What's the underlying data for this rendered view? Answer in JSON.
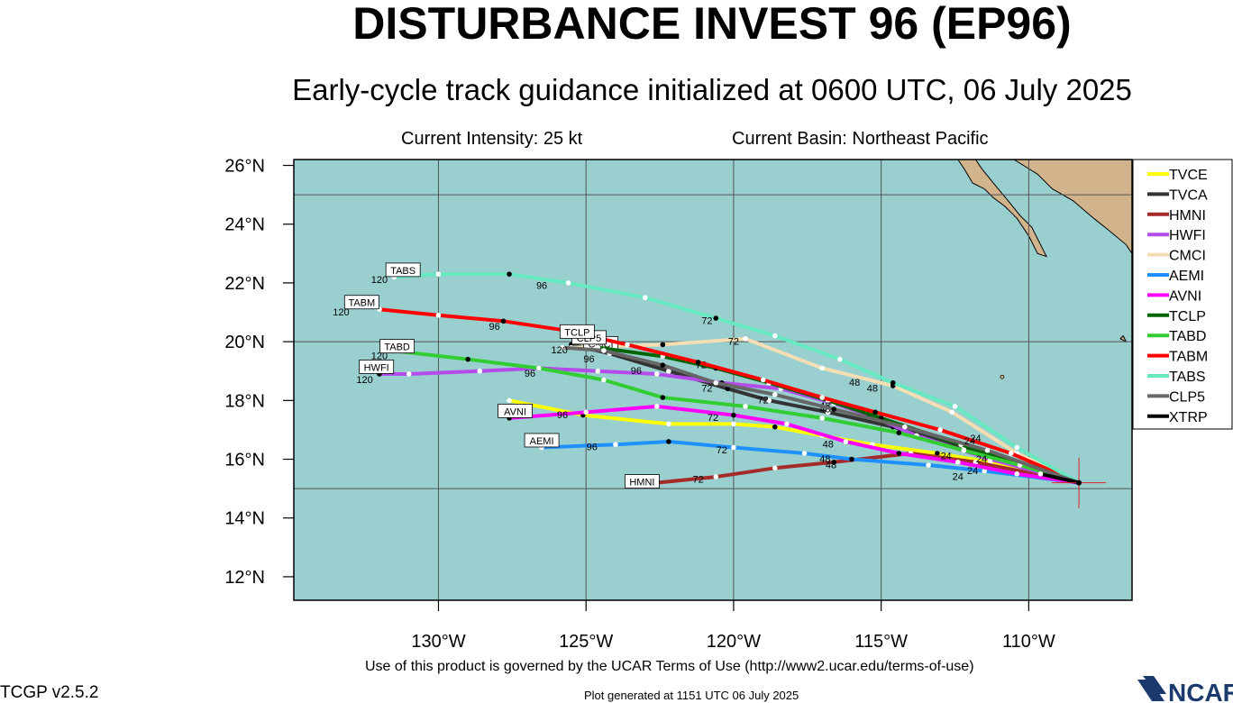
{
  "title": "DISTURBANCE INVEST 96 (EP96)",
  "subtitle": "Early-cycle track guidance initialized at 0600 UTC, 06 July 2025",
  "current_intensity": "Current Intensity: 25 kt",
  "current_basin": "Current Basin: Northeast Pacific",
  "footer": {
    "terms": "Use of this product is governed by the UCAR Terms of Use (http://www2.ucar.edu/terms-of-use)",
    "version": "TCGP v2.5.2",
    "generated": "Plot generated at 1151 UTC   06 July 2025",
    "logo_text": "NCAR"
  },
  "colors": {
    "ocean": "#99CFCF",
    "land": "#D2B48C",
    "grid": "#555555"
  },
  "chart_data": {
    "type": "map",
    "x_axis": {
      "ticks": [
        -130,
        -125,
        -120,
        -115,
        -110
      ],
      "labels": [
        "130°W",
        "125°W",
        "120°W",
        "115°W",
        "110°W"
      ],
      "range": [
        -134.9,
        -106.5
      ]
    },
    "y_axis": {
      "ticks": [
        12,
        14,
        16,
        18,
        20,
        22,
        24,
        26
      ],
      "labels": [
        "12°N",
        "14°N",
        "16°N",
        "18°N",
        "20°N",
        "22°N",
        "24°N",
        "26°N"
      ],
      "range": [
        11.2,
        26.2
      ]
    },
    "origin": {
      "lon": -108.3,
      "lat": 15.2
    },
    "legend_position": "right",
    "series": [
      {
        "name": "TVCE",
        "color": "#FFFF00",
        "points": [
          [
            -108.3,
            15.2
          ],
          [
            -109.6,
            15.6
          ],
          [
            -111.3,
            15.9
          ],
          [
            -113.1,
            16.2
          ],
          [
            -115.3,
            16.5
          ],
          [
            -117.0,
            16.8
          ],
          [
            -118.6,
            17.1
          ],
          [
            -120.0,
            17.2
          ],
          [
            -122.2,
            17.2
          ],
          [
            -125.1,
            17.5
          ],
          [
            -127.6,
            18.0
          ]
        ],
        "labels": [],
        "end_label": ""
      },
      {
        "name": "TVCA",
        "color": "#333333",
        "points": [
          [
            -108.3,
            15.2
          ],
          [
            -110.2,
            15.8
          ],
          [
            -112.2,
            16.4
          ],
          [
            -114.6,
            17.1
          ],
          [
            -116.8,
            17.6
          ],
          [
            -118.8,
            18.0
          ],
          [
            -120.2,
            18.4
          ],
          [
            -122.2,
            19.0
          ],
          [
            -124.2,
            19.6
          ],
          [
            -125.5,
            19.9
          ]
        ],
        "labels": [
          {
            "text": "72",
            "lon": -119.0,
            "lat": 17.9
          }
        ],
        "end_label": ""
      },
      {
        "name": "HMNI",
        "color": "#A52A2A",
        "points": [
          [
            -108.3,
            15.2
          ],
          [
            -111.8,
            15.9
          ],
          [
            -114.0,
            16.2
          ],
          [
            -116.6,
            15.9
          ],
          [
            -118.6,
            15.7
          ],
          [
            -120.6,
            15.4
          ],
          [
            -122.6,
            15.2
          ]
        ],
        "labels": [
          {
            "text": "48",
            "lon": -116.7,
            "lat": 15.7
          },
          {
            "text": "72",
            "lon": -121.2,
            "lat": 15.2
          }
        ],
        "end_label": "HMNI",
        "end_label_pos": [
          -123.1,
          15.2
        ]
      },
      {
        "name": "HWFI",
        "color": "#B44BEA",
        "points": [
          [
            -108.3,
            15.2
          ],
          [
            -111.3,
            16.0
          ],
          [
            -113.8,
            16.8
          ],
          [
            -115.4,
            17.5
          ],
          [
            -116.6,
            17.9
          ],
          [
            -118.4,
            18.4
          ],
          [
            -120.4,
            18.6
          ],
          [
            -122.6,
            18.9
          ],
          [
            -124.6,
            19.0
          ],
          [
            -126.6,
            19.1
          ],
          [
            -128.6,
            19.0
          ],
          [
            -131.0,
            18.9
          ],
          [
            -132.0,
            18.9
          ]
        ],
        "labels": [
          {
            "text": "48",
            "lon": -116.9,
            "lat": 17.6
          },
          {
            "text": "72",
            "lon": -120.9,
            "lat": 18.3
          },
          {
            "text": "96",
            "lon": -126.9,
            "lat": 18.8
          },
          {
            "text": "120",
            "lon": -132.5,
            "lat": 18.6
          }
        ],
        "end_label": "HWFI",
        "end_label_pos": [
          -132.1,
          19.1
        ]
      },
      {
        "name": "CMCI",
        "color": "#F5DEB3",
        "points": [
          [
            -108.3,
            15.2
          ],
          [
            -110.4,
            16.2
          ],
          [
            -112.6,
            17.6
          ],
          [
            -114.6,
            18.5
          ],
          [
            -117.0,
            19.1
          ],
          [
            -119.6,
            20.1
          ],
          [
            -122.4,
            19.9
          ],
          [
            -125.5,
            19.8
          ]
        ],
        "labels": [
          {
            "text": "48",
            "lon": -115.3,
            "lat": 18.3
          },
          {
            "text": "72",
            "lon": -120.0,
            "lat": 19.9
          }
        ],
        "end_label": "CMCI",
        "end_label_pos": [
          -124.5,
          19.9
        ]
      },
      {
        "name": "AEMI",
        "color": "#1E90FF",
        "points": [
          [
            -108.3,
            15.2
          ],
          [
            -111.5,
            15.6
          ],
          [
            -113.4,
            15.8
          ],
          [
            -116.0,
            16.0
          ],
          [
            -117.6,
            16.2
          ],
          [
            -120.0,
            16.4
          ],
          [
            -122.2,
            16.6
          ],
          [
            -124.0,
            16.5
          ],
          [
            -126.5,
            16.4
          ]
        ],
        "labels": [
          {
            "text": "48",
            "lon": -116.9,
            "lat": 15.9
          },
          {
            "text": "72",
            "lon": -120.4,
            "lat": 16.2
          },
          {
            "text": "96",
            "lon": -124.8,
            "lat": 16.3
          }
        ],
        "end_label": "AEMI",
        "end_label_pos": [
          -126.5,
          16.6
        ]
      },
      {
        "name": "AVNI",
        "color": "#FF00FF",
        "points": [
          [
            -108.3,
            15.2
          ],
          [
            -110.4,
            15.5
          ],
          [
            -112.4,
            15.9
          ],
          [
            -114.4,
            16.2
          ],
          [
            -116.2,
            16.6
          ],
          [
            -118.2,
            17.2
          ],
          [
            -120.0,
            17.5
          ],
          [
            -122.6,
            17.8
          ],
          [
            -125.0,
            17.6
          ],
          [
            -127.6,
            17.4
          ]
        ],
        "labels": [
          {
            "text": "48",
            "lon": -116.8,
            "lat": 16.4
          },
          {
            "text": "72",
            "lon": -120.7,
            "lat": 17.3
          },
          {
            "text": "96",
            "lon": -125.8,
            "lat": 17.4
          }
        ],
        "end_label": "AVNI",
        "end_label_pos": [
          -127.4,
          17.6
        ]
      },
      {
        "name": "TCLP",
        "color": "#006400",
        "points": [
          [
            -108.3,
            15.2
          ],
          [
            -110.4,
            15.9
          ],
          [
            -112.3,
            16.5
          ],
          [
            -115.0,
            17.4
          ],
          [
            -116.8,
            18.0
          ],
          [
            -118.8,
            18.6
          ],
          [
            -120.6,
            19.1
          ],
          [
            -122.4,
            19.5
          ],
          [
            -124.6,
            19.8
          ]
        ],
        "labels": [
          {
            "text": "72",
            "lon": -121.1,
            "lat": 19.1
          },
          {
            "text": "96",
            "lon": -123.3,
            "lat": 18.9
          }
        ],
        "end_label": "",
        "end_label_pos": [
          -125.5,
          20.1
        ]
      },
      {
        "name": "TABD",
        "color": "#32CD32",
        "points": [
          [
            -108.3,
            15.2
          ],
          [
            -110.3,
            15.8
          ],
          [
            -112.2,
            16.3
          ],
          [
            -114.4,
            16.9
          ],
          [
            -117.0,
            17.4
          ],
          [
            -119.6,
            17.8
          ],
          [
            -122.4,
            18.1
          ],
          [
            -124.4,
            18.7
          ],
          [
            -126.6,
            19.1
          ],
          [
            -129.0,
            19.4
          ],
          [
            -131.6,
            19.7
          ]
        ],
        "labels": [
          {
            "text": "120",
            "lon": -132.0,
            "lat": 19.4
          }
        ],
        "end_label": "TABD",
        "end_label_pos": [
          -131.4,
          19.8
        ]
      },
      {
        "name": "TABM",
        "color": "#FF0000",
        "points": [
          [
            -108.3,
            15.2
          ],
          [
            -110.6,
            16.2
          ],
          [
            -113.0,
            17.0
          ],
          [
            -115.2,
            17.6
          ],
          [
            -117.0,
            18.1
          ],
          [
            -119.0,
            18.7
          ],
          [
            -121.2,
            19.3
          ],
          [
            -123.6,
            19.9
          ],
          [
            -125.8,
            20.4
          ],
          [
            -127.8,
            20.7
          ],
          [
            -130.0,
            20.9
          ],
          [
            -132.0,
            21.1
          ]
        ],
        "labels": [
          {
            "text": "48",
            "lon": -116.9,
            "lat": 17.7
          },
          {
            "text": "96",
            "lon": -128.1,
            "lat": 20.4
          },
          {
            "text": "120",
            "lon": -133.3,
            "lat": 20.9
          }
        ],
        "end_label": "TABM",
        "end_label_pos": [
          -132.6,
          21.3
        ]
      },
      {
        "name": "TABS",
        "color": "#66E8C0",
        "points": [
          [
            -108.3,
            15.2
          ],
          [
            -110.4,
            16.4
          ],
          [
            -112.5,
            17.8
          ],
          [
            -114.6,
            18.6
          ],
          [
            -116.4,
            19.4
          ],
          [
            -118.6,
            20.2
          ],
          [
            -120.6,
            20.8
          ],
          [
            -123.0,
            21.5
          ],
          [
            -125.6,
            22.0
          ],
          [
            -127.6,
            22.3
          ],
          [
            -130.0,
            22.3
          ],
          [
            -131.5,
            22.2
          ]
        ],
        "labels": [
          {
            "text": "48",
            "lon": -115.9,
            "lat": 18.5
          },
          {
            "text": "72",
            "lon": -120.9,
            "lat": 20.6
          },
          {
            "text": "96",
            "lon": -126.5,
            "lat": 21.8
          },
          {
            "text": "120",
            "lon": -132.0,
            "lat": 22.0
          }
        ],
        "end_label": "TABS",
        "end_label_pos": [
          -131.2,
          22.4
        ]
      },
      {
        "name": "CLP5",
        "color": "#666666",
        "points": [
          [
            -108.3,
            15.2
          ],
          [
            -111.4,
            16.3
          ],
          [
            -114.2,
            17.1
          ],
          [
            -116.6,
            17.7
          ],
          [
            -118.6,
            18.2
          ],
          [
            -120.6,
            18.6
          ],
          [
            -122.4,
            19.2
          ],
          [
            -124.4,
            19.7
          ],
          [
            -125.8,
            19.8
          ]
        ],
        "labels": [
          {
            "text": "96",
            "lon": -124.9,
            "lat": 19.3
          },
          {
            "text": "120",
            "lon": -125.9,
            "lat": 19.6
          }
        ],
        "end_label": "CLP5",
        "end_label_pos": [
          -124.9,
          20.1
        ]
      },
      {
        "name": "XTRP",
        "color": "#000000",
        "points": [
          [
            -108.3,
            15.2
          ],
          [
            -109.6,
            15.5
          ]
        ],
        "labels": [],
        "end_label": ""
      }
    ],
    "extra_labels": [
      {
        "text": "24",
        "lon": -112.8,
        "lat": 16.0
      },
      {
        "text": "24",
        "lon": -112.0,
        "lat": 16.5
      },
      {
        "text": "24",
        "lon": -111.8,
        "lat": 16.6
      },
      {
        "text": "24",
        "lon": -112.4,
        "lat": 15.3
      },
      {
        "text": "24",
        "lon": -111.9,
        "lat": 15.5
      },
      {
        "text": "24",
        "lon": -111.6,
        "lat": 15.9
      },
      {
        "text": "TCLP",
        "lon": -125.3,
        "lat": 20.3,
        "boxed": true
      }
    ]
  }
}
